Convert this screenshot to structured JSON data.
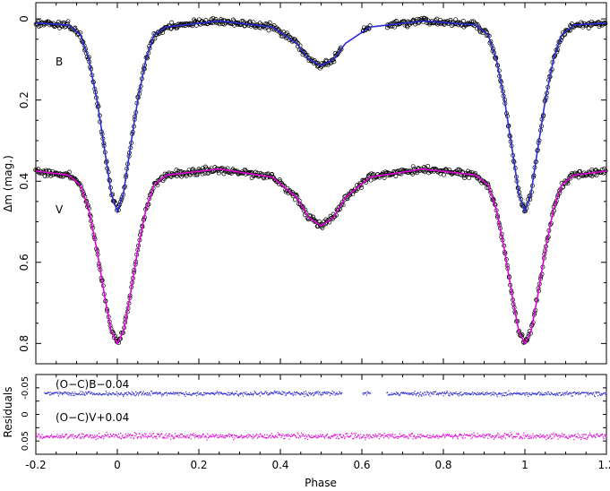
{
  "chart_data": [
    {
      "type": "scatter",
      "panel": "light-curve",
      "ylabel": "Δm  (mag.)",
      "xlim": [
        -0.2,
        1.2
      ],
      "ylim": [
        0.85,
        -0.04
      ],
      "y_inverted": true,
      "yticks": [
        "0",
        "0.2",
        "0.4",
        "0.6",
        "0.8"
      ],
      "series": [
        {
          "name": "B",
          "marker_color": "#000000",
          "model_color": "#2b2bd6",
          "model": [
            [
              -0.2,
              0.01
            ],
            [
              -0.12,
              0.015
            ],
            [
              -0.09,
              0.04
            ],
            [
              -0.07,
              0.1
            ],
            [
              -0.05,
              0.2
            ],
            [
              -0.03,
              0.33
            ],
            [
              -0.015,
              0.43
            ],
            [
              0.0,
              0.475
            ],
            [
              0.015,
              0.43
            ],
            [
              0.03,
              0.33
            ],
            [
              0.05,
              0.2
            ],
            [
              0.07,
              0.1
            ],
            [
              0.09,
              0.04
            ],
            [
              0.12,
              0.02
            ],
            [
              0.25,
              0.005
            ],
            [
              0.38,
              0.02
            ],
            [
              0.44,
              0.06
            ],
            [
              0.47,
              0.1
            ],
            [
              0.5,
              0.115
            ],
            [
              0.53,
              0.1
            ],
            [
              0.56,
              0.06
            ],
            [
              0.62,
              0.02
            ],
            [
              0.75,
              0.005
            ],
            [
              0.88,
              0.015
            ],
            [
              0.91,
              0.04
            ],
            [
              0.93,
              0.1
            ],
            [
              0.95,
              0.2
            ],
            [
              0.97,
              0.33
            ],
            [
              0.985,
              0.43
            ],
            [
              1.0,
              0.475
            ],
            [
              1.015,
              0.43
            ],
            [
              1.03,
              0.33
            ],
            [
              1.05,
              0.2
            ],
            [
              1.07,
              0.1
            ],
            [
              1.09,
              0.04
            ],
            [
              1.12,
              0.015
            ],
            [
              1.2,
              0.01
            ]
          ]
        },
        {
          "name": "V",
          "marker_color": "#000000",
          "model_color": "#e000d8",
          "model": [
            [
              -0.2,
              0.375
            ],
            [
              -0.12,
              0.385
            ],
            [
              -0.09,
              0.41
            ],
            [
              -0.07,
              0.47
            ],
            [
              -0.05,
              0.57
            ],
            [
              -0.03,
              0.69
            ],
            [
              -0.015,
              0.77
            ],
            [
              0.0,
              0.8
            ],
            [
              0.015,
              0.77
            ],
            [
              0.03,
              0.69
            ],
            [
              0.05,
              0.57
            ],
            [
              0.07,
              0.47
            ],
            [
              0.09,
              0.41
            ],
            [
              0.12,
              0.385
            ],
            [
              0.25,
              0.37
            ],
            [
              0.38,
              0.39
            ],
            [
              0.44,
              0.44
            ],
            [
              0.47,
              0.49
            ],
            [
              0.5,
              0.51
            ],
            [
              0.53,
              0.49
            ],
            [
              0.56,
              0.44
            ],
            [
              0.62,
              0.39
            ],
            [
              0.75,
              0.37
            ],
            [
              0.88,
              0.385
            ],
            [
              0.91,
              0.41
            ],
            [
              0.93,
              0.47
            ],
            [
              0.95,
              0.57
            ],
            [
              0.97,
              0.69
            ],
            [
              0.985,
              0.77
            ],
            [
              1.0,
              0.8
            ],
            [
              1.015,
              0.77
            ],
            [
              1.03,
              0.69
            ],
            [
              1.05,
              0.57
            ],
            [
              1.07,
              0.47
            ],
            [
              1.09,
              0.41
            ],
            [
              1.12,
              0.385
            ],
            [
              1.2,
              0.375
            ]
          ]
        }
      ],
      "annotations": [
        {
          "text": "B",
          "x": -0.14,
          "y": 0.1
        },
        {
          "text": "V",
          "x": -0.14,
          "y": 0.48
        }
      ]
    },
    {
      "type": "scatter",
      "panel": "residuals",
      "xlabel": "Phase",
      "ylabel": "Residuals",
      "xlim": [
        -0.2,
        1.2
      ],
      "ylim": [
        0.075,
        -0.075
      ],
      "y_inverted": true,
      "xticks": [
        "-0.2",
        "0",
        "0.2",
        "0.4",
        "0.6",
        "0.8",
        "1",
        "1.2"
      ],
      "yticks": [
        "0.05",
        "0",
        "-0.05"
      ],
      "series": [
        {
          "name": "(O−C)B−0.04",
          "offset": -0.04,
          "color": "#2b2bd6"
        },
        {
          "name": "(O−C)V+0.04",
          "offset": 0.04,
          "color": "#e000d8"
        }
      ]
    }
  ]
}
